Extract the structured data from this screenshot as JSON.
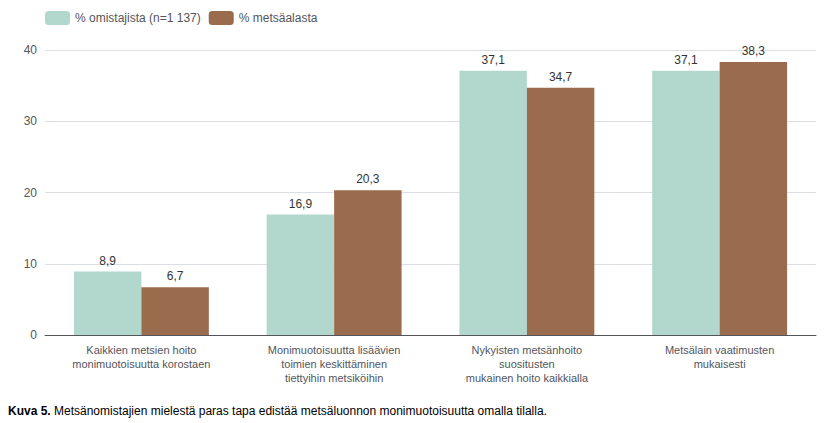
{
  "chart_data": {
    "type": "bar",
    "categories": [
      "Kaikkien metsien hoito\nmonimuotoisuutta korostaen",
      "Monimuotoisuutta lisäävien\ntoimien keskittäminen\ntiettyihin metsiköihin",
      "Nykyisten metsänhoito\nsuositusten\nmukainen hoito kaikkialla",
      "Metsälain vaatimusten\nmukaisesti"
    ],
    "series": [
      {
        "name": "% omistajista (n=1 137)",
        "color": "#b2d8ce",
        "values": [
          8.9,
          16.9,
          37.1,
          37.1
        ],
        "value_labels": [
          "8,9",
          "16,9",
          "37,1",
          "37,1"
        ]
      },
      {
        "name": "% metsäalasta",
        "color": "#9b6b4e",
        "values": [
          6.7,
          20.3,
          34.7,
          38.3
        ],
        "value_labels": [
          "6,7",
          "20,3",
          "34,7",
          "38,3"
        ]
      }
    ],
    "ylim": [
      0,
      40
    ],
    "yticks": [
      0,
      10,
      20,
      30,
      40
    ],
    "grid": true,
    "legend": "upper left",
    "data_labels": true,
    "annotations": [
      "Kuva 5.",
      " Metsänomistajien mielestä paras tapa edistää metsäluonnon monimuotoisuutta omalla tilalla."
    ]
  }
}
